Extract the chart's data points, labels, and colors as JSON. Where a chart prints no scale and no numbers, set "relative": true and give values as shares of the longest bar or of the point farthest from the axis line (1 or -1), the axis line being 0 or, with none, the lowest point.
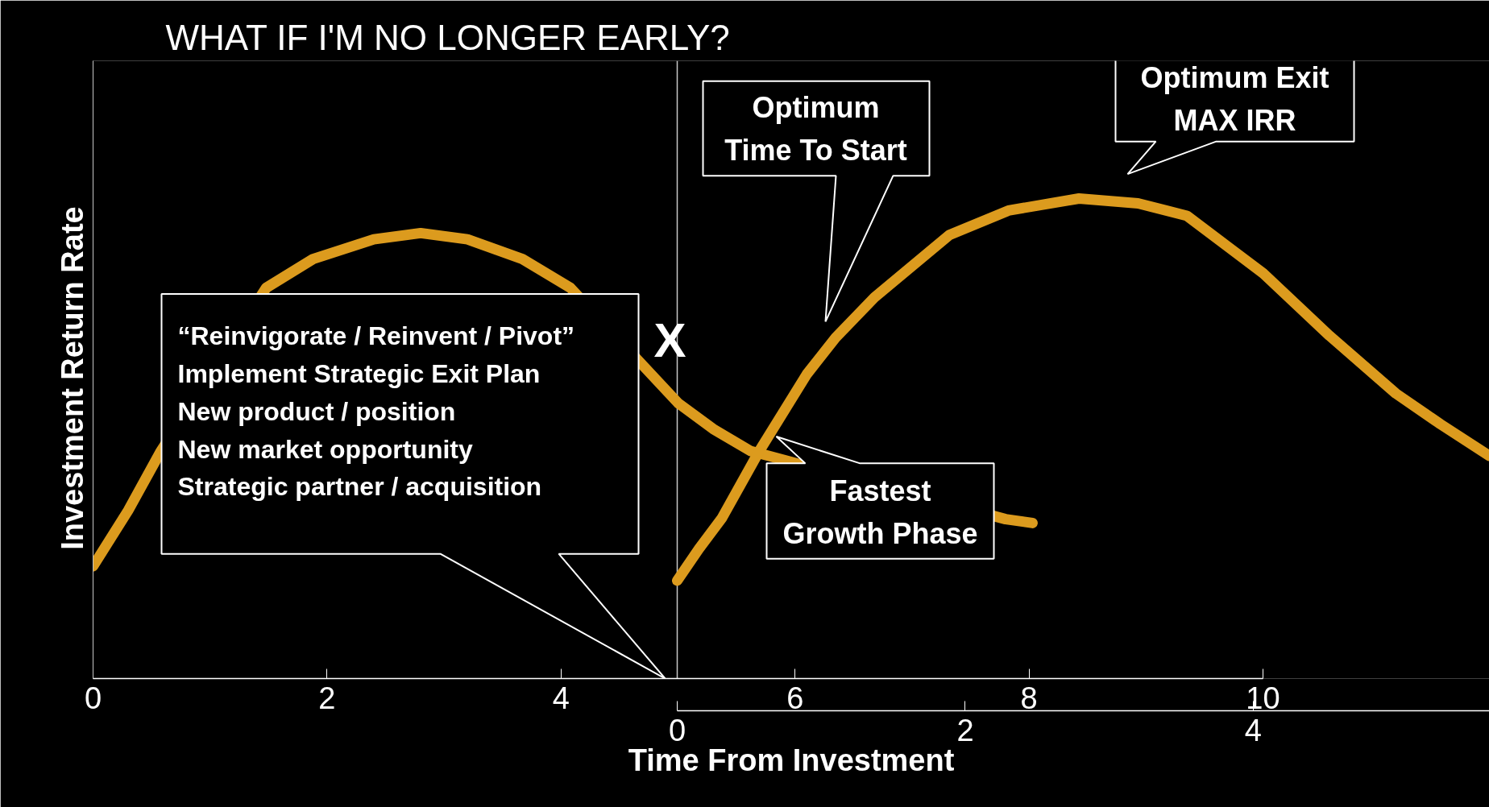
{
  "chart_data": {
    "type": "line",
    "title": "WHAT IF I'M NO LONGER EARLY?",
    "xlabel": "Time From Investment",
    "ylabel": "Investment  Return  Rate",
    "relative": true,
    "xlim": [
      0,
      10
    ],
    "xticks": [
      0,
      2,
      4,
      6,
      8,
      10
    ],
    "x2lim": [
      0,
      5.64
    ],
    "x2ticks": [
      0,
      2,
      4
    ],
    "grid": false,
    "legend": false,
    "line_style": "solid",
    "series": [
      {
        "color": "#dc9b1e",
        "x": [
          0,
          0.3,
          0.58,
          1.48,
          1.88,
          2.4,
          2.8,
          3.2,
          3.67,
          4.08,
          5.0,
          5.3,
          5.62,
          7.8,
          8.03
        ],
        "values": [
          0.234,
          0.35,
          0.474,
          0.814,
          0.874,
          0.915,
          0.928,
          0.915,
          0.874,
          0.814,
          0.574,
          0.52,
          0.474,
          0.332,
          0.324
        ]
      },
      {
        "color": "#dc9b1e",
        "axis": "x2",
        "x": [
          0,
          0.15,
          0.31,
          0.57,
          0.9,
          1.1,
          1.37,
          1.89,
          2.3,
          2.79,
          3.2,
          3.54,
          4.07,
          4.53,
          4.99,
          5.3,
          5.64
        ],
        "values": [
          0.204,
          0.27,
          0.334,
          0.474,
          0.634,
          0.71,
          0.794,
          0.924,
          0.975,
          1.0,
          0.99,
          0.964,
          0.844,
          0.714,
          0.594,
          0.53,
          0.464
        ]
      }
    ],
    "ref_lines": [
      {
        "axis": "x2",
        "value": 0,
        "color": "#c8c8c8"
      }
    ],
    "annotations": [
      "“Reinvigorate / Reinvent / Pivot”\nImplement Strategic Exit Plan\nNew product / position\nNew market opportunity\nStrategic partner / acquisition",
      "Optimum\nTime To Start",
      "Optimum Exit\nMAX IRR",
      "Fastest\nGrowth Phase",
      "X"
    ]
  }
}
